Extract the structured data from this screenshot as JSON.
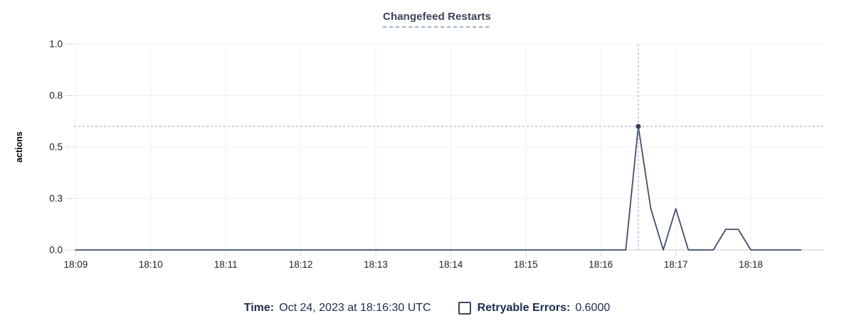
{
  "title": "Changefeed Restarts",
  "footer": {
    "time_label": "Time:",
    "time_value": "Oct 24, 2023 at 18:16:30 UTC",
    "series_label": "Retryable Errors:",
    "series_value": "0.6000",
    "checkbox_checked": false
  },
  "colors": {
    "title_text": "#394455",
    "title_underline": "#9db0c8",
    "footer_text": "#1e2c4e",
    "line": "#40506a",
    "hover_dot": "#35415a",
    "crosshair": "#96a5b8",
    "gridline": "#f0f0f0",
    "zero_axis": "#e4e4e4",
    "tick_mark": "#d8d8d8",
    "tick_label": "#222222",
    "axis_label": "#000000"
  },
  "chart_data": {
    "type": "line",
    "title": "Changefeed Restarts",
    "xlabel": "",
    "ylabel": "actions",
    "ylim": [
      0,
      1
    ],
    "grid": true,
    "legend_position": "bottom",
    "y_ticks": [
      {
        "v": 0,
        "label": "0.0"
      },
      {
        "v": 0.25,
        "label": "0.3"
      },
      {
        "v": 0.5,
        "label": "0.5"
      },
      {
        "v": 0.75,
        "label": "0.8"
      },
      {
        "v": 1.0,
        "label": "1.0"
      }
    ],
    "x_ticks": [
      "18:09",
      "18:10",
      "18:11",
      "18:12",
      "18:13",
      "18:14",
      "18:15",
      "18:16",
      "18:17",
      "18:18"
    ],
    "start_time": "18:09:00",
    "interval_sec": 10,
    "series": [
      {
        "name": "Retryable Errors",
        "values": [
          0,
          0,
          0,
          0,
          0,
          0,
          0,
          0,
          0,
          0,
          0,
          0,
          0,
          0,
          0,
          0,
          0,
          0,
          0,
          0,
          0,
          0,
          0,
          0,
          0,
          0,
          0,
          0,
          0,
          0,
          0,
          0,
          0,
          0,
          0,
          0,
          0,
          0,
          0,
          0,
          0,
          0,
          0,
          0,
          0,
          0.6,
          0.2,
          0,
          0.2,
          0,
          0,
          0,
          0.1,
          0.1,
          0,
          0,
          0,
          0,
          0
        ]
      }
    ],
    "hover": {
      "time": "18:16:30",
      "value": 0.6,
      "display": "0.6000"
    }
  }
}
